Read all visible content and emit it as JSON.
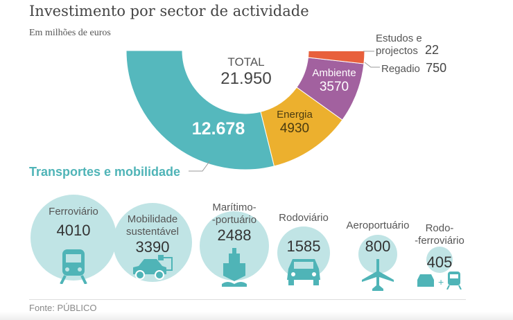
{
  "title": "Investimento por sector de actividade",
  "subtitle": "Em milhões de euros",
  "source": "Fonte:  PÚBLICO",
  "chart_data": [
    {
      "type": "pie",
      "variant": "half-donut",
      "total_label": "TOTAL",
      "total_value": "21.950",
      "categories": [
        "Transportes e mobilidade",
        "Energia",
        "Ambiente",
        "Regadio",
        "Estudos e projectos"
      ],
      "values": [
        12678,
        4930,
        3570,
        750,
        22
      ],
      "value_labels": [
        "12.678",
        "4930",
        "3570",
        "750",
        "22"
      ],
      "colors": [
        "#55b8bd",
        "#ecb02e",
        "#a2619f",
        "#e8603c",
        "#555555"
      ]
    },
    {
      "type": "bubble",
      "categories": [
        "Ferroviário",
        "Mobilidade sustentável",
        "Marítimo-portuário",
        "Rodoviário",
        "Aeroportuário",
        "Rodo-ferroviário"
      ],
      "values": [
        4010,
        3390,
        2488,
        1585,
        800,
        405
      ],
      "icons": [
        "train-icon",
        "electric-car-icon",
        "ship-icon",
        "car-icon",
        "airplane-icon",
        "car-plus-train-icon"
      ],
      "bubble_color": "#c0e4e5",
      "icon_color": "#4fb4b7"
    }
  ],
  "labels": {
    "estudos_1": "Estudos e",
    "estudos_2": "projectos",
    "regadio": "Regadio",
    "bub": [
      "Ferroviário",
      "Mobilidade\nsustentável",
      "Marítimo-\n-portuário",
      "Rodoviário",
      "Aeroportuário",
      "Rodo-\n-ferroviário"
    ]
  }
}
